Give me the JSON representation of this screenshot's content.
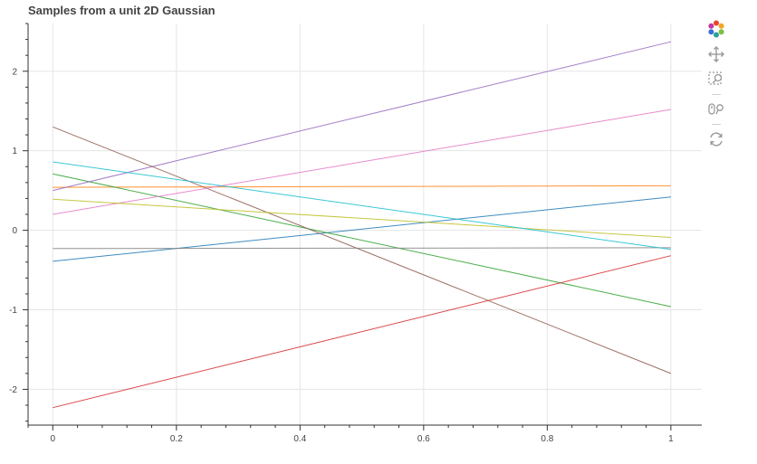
{
  "title": "Samples from a unit 2D Gaussian",
  "toolbar": {
    "tools": [
      {
        "icon": "bokeh-logo-icon"
      },
      {
        "icon": "pan-icon"
      },
      {
        "icon": "box-zoom-icon"
      },
      {
        "icon": "wheel-zoom-icon"
      },
      {
        "icon": "reset-icon"
      }
    ]
  },
  "chart_data": {
    "type": "line",
    "title": "Samples from a unit 2D Gaussian",
    "xlabel": "",
    "ylabel": "",
    "xlim": [
      -0.04,
      1.05
    ],
    "ylim": [
      -2.45,
      2.6
    ],
    "x_ticks": [
      0,
      0.2,
      0.4,
      0.6,
      0.8,
      1
    ],
    "x_tick_labels": [
      "0",
      "0.2",
      "0.4",
      "0.6",
      "0.8",
      "1"
    ],
    "y_ticks": [
      -2,
      -1,
      0,
      1,
      2
    ],
    "y_tick_labels": [
      "-2",
      "-1",
      "0",
      "1",
      "2"
    ],
    "grid": true,
    "series": [
      {
        "color": "#1f77b4",
        "x": [
          0,
          1
        ],
        "y": [
          -0.39,
          0.42
        ]
      },
      {
        "color": "#ff7f0e",
        "x": [
          0,
          1
        ],
        "y": [
          0.54,
          0.56
        ]
      },
      {
        "color": "#2ca02c",
        "x": [
          0,
          1
        ],
        "y": [
          0.71,
          -0.96
        ]
      },
      {
        "color": "#d62728",
        "x": [
          0,
          1
        ],
        "y": [
          -2.23,
          -0.32
        ]
      },
      {
        "color": "#9467bd",
        "x": [
          0,
          1
        ],
        "y": [
          0.5,
          2.37
        ]
      },
      {
        "color": "#8c564b",
        "x": [
          0,
          1
        ],
        "y": [
          1.3,
          -1.8
        ]
      },
      {
        "color": "#e377c2",
        "x": [
          0,
          1
        ],
        "y": [
          0.2,
          1.52
        ]
      },
      {
        "color": "#7f7f7f",
        "x": [
          0,
          1
        ],
        "y": [
          -0.23,
          -0.22
        ]
      },
      {
        "color": "#bcbd22",
        "x": [
          0,
          1
        ],
        "y": [
          0.39,
          -0.09
        ]
      },
      {
        "color": "#17becf",
        "x": [
          0,
          1
        ],
        "y": [
          0.86,
          -0.24
        ]
      }
    ]
  }
}
